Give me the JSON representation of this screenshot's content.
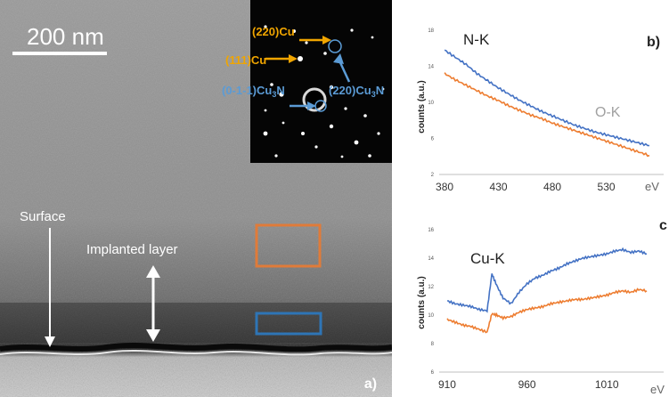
{
  "tem_panel": {
    "panel_label": "a)",
    "scale_bar_label": "200 nm",
    "labels": {
      "surface": "Surface",
      "implanted_layer": "Implanted layer"
    },
    "box_colors": {
      "orange": "#e07b39",
      "blue": "#2e75b6"
    },
    "diffraction_inset": {
      "labels": {
        "cu_220": "(220)Cu",
        "cu_111": "(111)Cu",
        "cu3n_0m1m1": "(0-1-1)Cu",
        "cu3n_220": "(220)Cu",
        "sub3": "3",
        "n": "N"
      },
      "label_colors": {
        "cu": "#f0a500",
        "cu3n": "#5b9bd5"
      }
    }
  },
  "chart_data": [
    {
      "type": "line",
      "panel_label": "b)",
      "annotations": [
        "N-K",
        "O-K"
      ],
      "ylabel": "counts (a.u.)",
      "xlabel": "eV",
      "x_ticks": [
        380,
        430,
        480,
        530
      ],
      "y_ticks": [
        2,
        6,
        10,
        14,
        18
      ],
      "xlim": [
        375,
        575
      ],
      "ylim": [
        2,
        18
      ],
      "series": [
        {
          "color": "#4472c4",
          "x": [
            380,
            390,
            400,
            410,
            420,
            430,
            440,
            450,
            460,
            470,
            480,
            490,
            500,
            510,
            520,
            530,
            540,
            550,
            560,
            570
          ],
          "y": [
            15.8,
            15.0,
            14.2,
            13.2,
            12.4,
            11.6,
            10.9,
            10.2,
            9.6,
            9.0,
            8.5,
            8.0,
            7.5,
            7.1,
            6.7,
            6.4,
            6.1,
            5.8,
            5.5,
            5.2
          ]
        },
        {
          "color": "#ed7d31",
          "x": [
            380,
            390,
            400,
            410,
            420,
            430,
            440,
            450,
            460,
            470,
            480,
            490,
            500,
            510,
            520,
            530,
            540,
            550,
            560,
            570
          ],
          "y": [
            13.2,
            12.5,
            11.9,
            11.3,
            10.7,
            10.2,
            9.6,
            9.1,
            8.6,
            8.2,
            7.7,
            7.3,
            6.9,
            6.5,
            6.1,
            5.7,
            5.3,
            4.9,
            4.5,
            4.1
          ]
        }
      ]
    },
    {
      "type": "line",
      "panel_label": "c",
      "annotations": [
        "Cu-K"
      ],
      "ylabel": "counts (a.u.)",
      "xlabel": "eV",
      "x_ticks": [
        910,
        960,
        1010
      ],
      "y_ticks": [
        6,
        8,
        10,
        12,
        14,
        16
      ],
      "xlim": [
        905,
        1040
      ],
      "ylim": [
        6,
        16
      ],
      "series": [
        {
          "color": "#4472c4",
          "x": [
            910,
            915,
            920,
            925,
            930,
            935,
            938,
            941,
            945,
            950,
            955,
            960,
            965,
            970,
            975,
            980,
            985,
            990,
            995,
            1000,
            1005,
            1010,
            1015,
            1020,
            1025,
            1030,
            1035
          ],
          "y": [
            11.0,
            10.8,
            10.7,
            10.6,
            10.4,
            10.3,
            12.9,
            12.1,
            11.2,
            10.8,
            11.6,
            12.2,
            12.6,
            12.8,
            13.1,
            13.3,
            13.6,
            13.8,
            14.0,
            14.1,
            14.2,
            14.3,
            14.5,
            14.6,
            14.4,
            14.5,
            14.3
          ]
        },
        {
          "color": "#ed7d31",
          "x": [
            910,
            915,
            920,
            925,
            930,
            935,
            938,
            941,
            945,
            950,
            955,
            960,
            965,
            970,
            975,
            980,
            985,
            990,
            995,
            1000,
            1005,
            1010,
            1015,
            1020,
            1025,
            1030,
            1035
          ],
          "y": [
            9.7,
            9.5,
            9.3,
            9.2,
            9.0,
            8.8,
            10.1,
            10.0,
            9.8,
            9.9,
            10.2,
            10.4,
            10.5,
            10.6,
            10.8,
            10.9,
            11.0,
            11.1,
            11.1,
            11.2,
            11.3,
            11.4,
            11.6,
            11.7,
            11.6,
            11.8,
            11.7
          ]
        }
      ]
    }
  ]
}
